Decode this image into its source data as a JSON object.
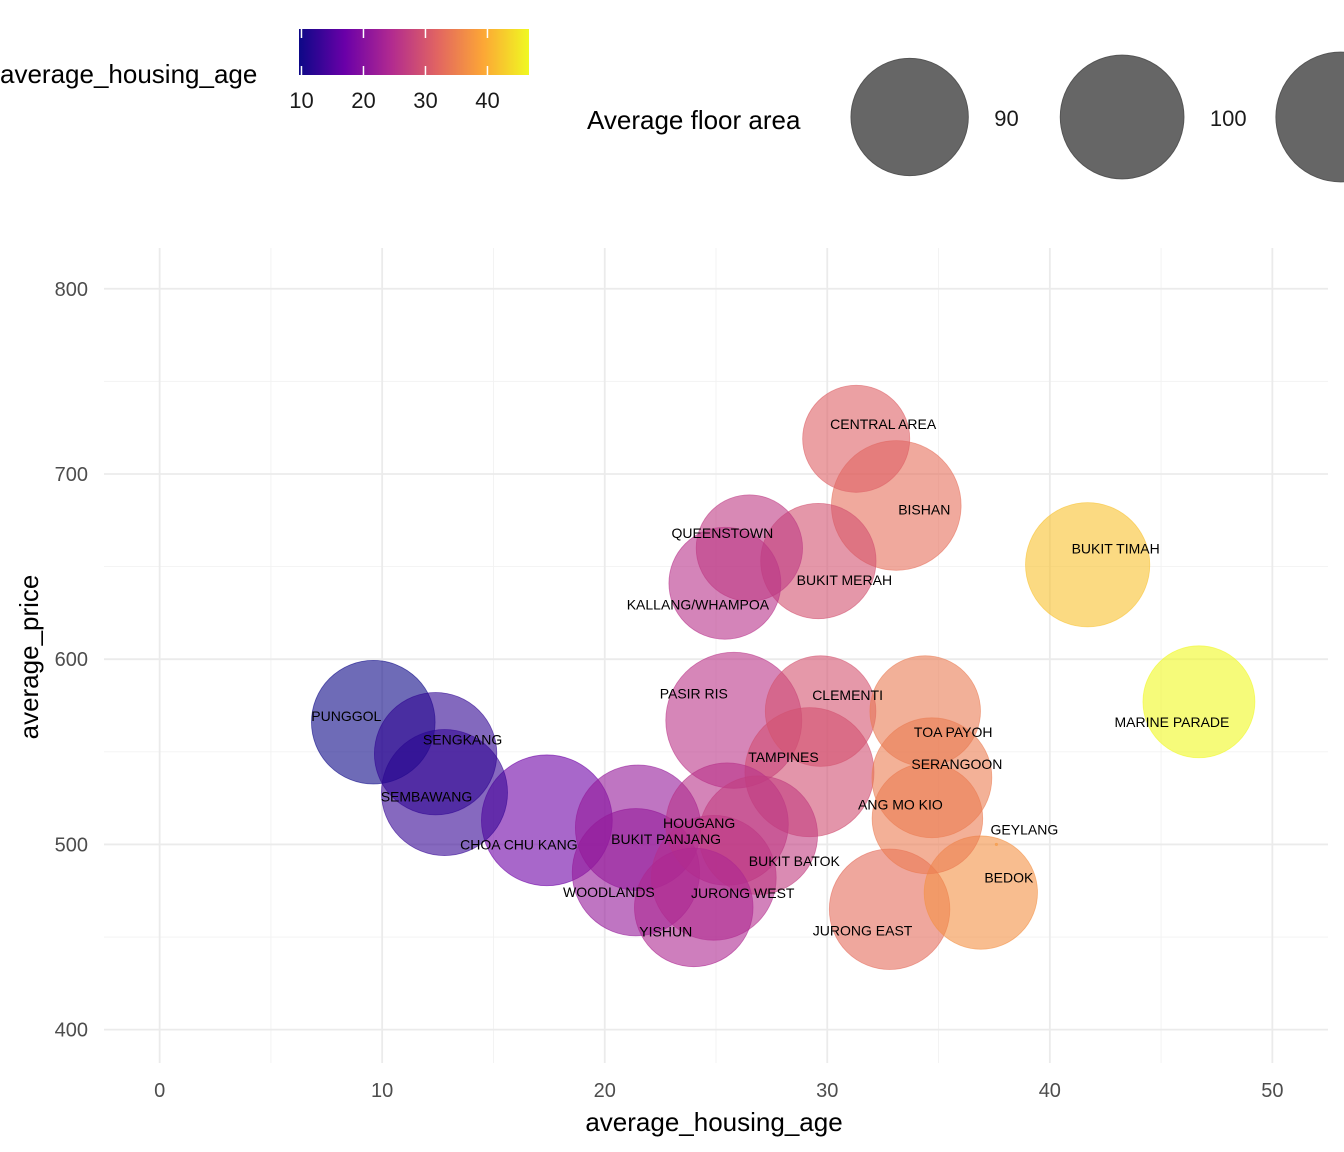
{
  "chart_data": {
    "type": "scatter",
    "xlabel": "average_housing_age",
    "ylabel": "average_price",
    "xlim": [
      -2.5,
      52.5
    ],
    "ylim": [
      382,
      822
    ],
    "x_ticks": [
      0,
      10,
      20,
      30,
      40,
      50
    ],
    "y_ticks": [
      400,
      500,
      600,
      700,
      800
    ],
    "grid": true,
    "color_legend": {
      "title": "average_housing_age",
      "ticks": [
        10,
        20,
        30,
        40
      ],
      "range": [
        9.6,
        46.7
      ],
      "palette": [
        "#0d0887",
        "#6a00a8",
        "#b12a90",
        "#e16462",
        "#fca636",
        "#f0f921"
      ]
    },
    "size_legend": {
      "title": "Average floor area",
      "breaks": [
        {
          "value": 90,
          "label": "90"
        },
        {
          "value": 100,
          "label": "100"
        },
        {
          "value": 110,
          "label": ""
        }
      ]
    },
    "points": [
      {
        "name": "CENTRAL AREA",
        "x": 31.3,
        "y": 719,
        "floor_area": 75
      },
      {
        "name": "BISHAN",
        "x": 33.1,
        "y": 683,
        "floor_area": 110
      },
      {
        "name": "QUEENSTOWN",
        "x": 26.5,
        "y": 660,
        "floor_area": 74
      },
      {
        "name": "BUKIT MERAH",
        "x": 29.6,
        "y": 653,
        "floor_area": 87
      },
      {
        "name": "KALLANG/WHAMPOA",
        "x": 25.4,
        "y": 641,
        "floor_area": 82
      },
      {
        "name": "BUKIT TIMAH",
        "x": 41.7,
        "y": 651,
        "floor_area": 101
      },
      {
        "name": "MARINE PARADE",
        "x": 46.7,
        "y": 577,
        "floor_area": 82
      },
      {
        "name": "PUNGGOL",
        "x": 9.6,
        "y": 566,
        "floor_area": 100
      },
      {
        "name": "SENGKANG",
        "x": 12.4,
        "y": 549,
        "floor_area": 98
      },
      {
        "name": "SEMBAWANG",
        "x": 12.8,
        "y": 528,
        "floor_area": 104
      },
      {
        "name": "CHOA CHU KANG",
        "x": 17.4,
        "y": 513,
        "floor_area": 112
      },
      {
        "name": "PASIR RIS",
        "x": 25.8,
        "y": 567,
        "floor_area": 121
      },
      {
        "name": "CLEMENTI",
        "x": 29.7,
        "y": 572,
        "floor_area": 80
      },
      {
        "name": "TOA PAYOH",
        "x": 34.4,
        "y": 572,
        "floor_area": 80
      },
      {
        "name": "TAMPINES",
        "x": 29.2,
        "y": 539,
        "floor_area": 109
      },
      {
        "name": "SERANGOON",
        "x": 34.7,
        "y": 536,
        "floor_area": 94
      },
      {
        "name": "HOUGANG",
        "x": 25.5,
        "y": 511,
        "floor_area": 98
      },
      {
        "name": "ANG MO KIO",
        "x": 34.5,
        "y": 514,
        "floor_area": 80
      },
      {
        "name": "GEYLANG",
        "x": 37.6,
        "y": 500,
        "floor_area": 0
      },
      {
        "name": "BUKIT PANJANG",
        "x": 21.5,
        "y": 509,
        "floor_area": 103
      },
      {
        "name": "BUKIT BATOK",
        "x": 26.9,
        "y": 505,
        "floor_area": 92
      },
      {
        "name": "WOODLANDS",
        "x": 21.4,
        "y": 485,
        "floor_area": 106
      },
      {
        "name": "JURONG WEST",
        "x": 24.9,
        "y": 482,
        "floor_area": 102
      },
      {
        "name": "YISHUN",
        "x": 24.0,
        "y": 466,
        "floor_area": 92
      },
      {
        "name": "JURONG EAST",
        "x": 32.8,
        "y": 465,
        "floor_area": 95
      },
      {
        "name": "BEDOK",
        "x": 36.9,
        "y": 474,
        "floor_area": 84
      }
    ]
  }
}
